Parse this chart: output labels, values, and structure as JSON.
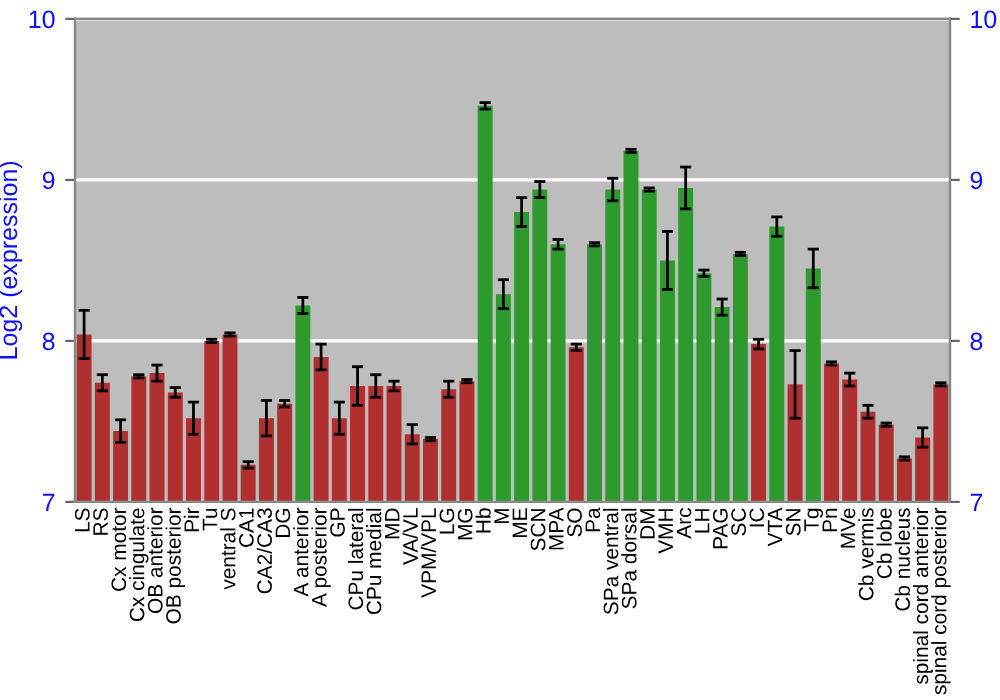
{
  "chart_data": {
    "type": "bar",
    "ylabel": "Log2 (expression)",
    "categories": [
      "LS",
      "RS",
      "Cx motor",
      "Cx cingulate",
      "OB anterior",
      "OB posterior",
      "Pir",
      "Tu",
      "ventral S",
      "CA1",
      "CA2/CA3",
      "DG",
      "A anterior",
      "A posterior",
      "GP",
      "CPu lateral",
      "CPu medial",
      "MD",
      "VA/VL",
      "VPM/VPL",
      "LG",
      "MG",
      "Hb",
      "M",
      "ME",
      "SCN",
      "MPA",
      "SO",
      "Pa",
      "SPa ventral",
      "SPa dorsal",
      "DM",
      "VMH",
      "Arc",
      "LH",
      "PAG",
      "SC",
      "IC",
      "VTA",
      "SN",
      "Tg",
      "Pn",
      "MVe",
      "Cb vermis",
      "Cb lobe",
      "Cb nucleus",
      "spinal cord anterior",
      "spinal cord posterior"
    ],
    "values": [
      8.04,
      7.74,
      7.44,
      7.78,
      7.8,
      7.68,
      7.52,
      8.0,
      8.04,
      7.23,
      7.52,
      7.61,
      8.22,
      7.9,
      7.52,
      7.72,
      7.72,
      7.72,
      7.42,
      7.39,
      7.7,
      7.75,
      9.46,
      8.29,
      8.8,
      8.94,
      8.6,
      7.96,
      8.6,
      8.94,
      9.18,
      8.94,
      8.5,
      8.95,
      8.42,
      8.21,
      8.54,
      7.98,
      8.71,
      7.73,
      8.45,
      7.86,
      7.76,
      7.56,
      7.48,
      7.27,
      7.4,
      7.73
    ],
    "errors": [
      0.15,
      0.05,
      0.07,
      0.01,
      0.05,
      0.03,
      0.1,
      0.01,
      0.01,
      0.02,
      0.11,
      0.02,
      0.05,
      0.08,
      0.1,
      0.12,
      0.07,
      0.03,
      0.06,
      0.01,
      0.05,
      0.01,
      0.02,
      0.09,
      0.09,
      0.05,
      0.03,
      0.02,
      0.01,
      0.07,
      0.01,
      0.01,
      0.18,
      0.13,
      0.02,
      0.05,
      0.01,
      0.03,
      0.06,
      0.21,
      0.12,
      0.01,
      0.04,
      0.04,
      0.01,
      0.01,
      0.06,
      0.01
    ],
    "colors": [
      "#b03030",
      "#b03030",
      "#b03030",
      "#b03030",
      "#b03030",
      "#b03030",
      "#b03030",
      "#b03030",
      "#b03030",
      "#b03030",
      "#b03030",
      "#b03030",
      "#2e9a2e",
      "#b03030",
      "#b03030",
      "#b03030",
      "#b03030",
      "#b03030",
      "#b03030",
      "#b03030",
      "#b03030",
      "#b03030",
      "#2e9a2e",
      "#2e9a2e",
      "#2e9a2e",
      "#2e9a2e",
      "#2e9a2e",
      "#b03030",
      "#2e9a2e",
      "#2e9a2e",
      "#2e9a2e",
      "#2e9a2e",
      "#2e9a2e",
      "#2e9a2e",
      "#2e9a2e",
      "#2e9a2e",
      "#2e9a2e",
      "#b03030",
      "#2e9a2e",
      "#b03030",
      "#2e9a2e",
      "#b03030",
      "#b03030",
      "#b03030",
      "#b03030",
      "#b03030",
      "#b03030",
      "#b03030"
    ],
    "ylim": [
      7,
      10
    ],
    "yticks": [
      7,
      8,
      9,
      10
    ],
    "y2lim": [
      7,
      10
    ],
    "y2ticks": [
      7,
      8,
      9,
      10
    ],
    "grid": "y"
  }
}
